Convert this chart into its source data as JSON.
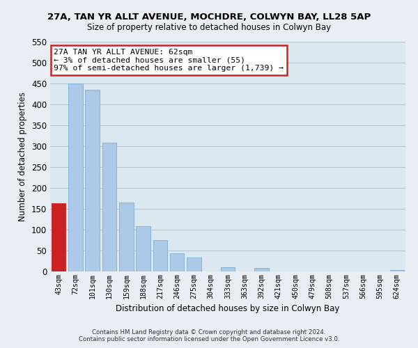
{
  "title1": "27A, TAN YR ALLT AVENUE, MOCHDRE, COLWYN BAY, LL28 5AP",
  "title2": "Size of property relative to detached houses in Colwyn Bay",
  "xlabel": "Distribution of detached houses by size in Colwyn Bay",
  "ylabel": "Number of detached properties",
  "categories": [
    "43sqm",
    "72sqm",
    "101sqm",
    "130sqm",
    "159sqm",
    "188sqm",
    "217sqm",
    "246sqm",
    "275sqm",
    "304sqm",
    "333sqm",
    "363sqm",
    "392sqm",
    "421sqm",
    "450sqm",
    "479sqm",
    "508sqm",
    "537sqm",
    "566sqm",
    "595sqm",
    "624sqm"
  ],
  "values": [
    163,
    450,
    435,
    308,
    165,
    108,
    75,
    43,
    33,
    0,
    10,
    0,
    8,
    0,
    0,
    0,
    0,
    0,
    0,
    0,
    3
  ],
  "bar_color": "#adc9e8",
  "bar_edge_color": "#7aafd4",
  "highlight_bar_index": 0,
  "highlight_bar_color": "#cc2222",
  "ylim": [
    0,
    550
  ],
  "yticks": [
    0,
    50,
    100,
    150,
    200,
    250,
    300,
    350,
    400,
    450,
    500,
    550
  ],
  "annotation_title": "27A TAN YR ALLT AVENUE: 62sqm",
  "annotation_line1": "← 3% of detached houses are smaller (55)",
  "annotation_line2": "97% of semi-detached houses are larger (1,739) →",
  "footer1": "Contains HM Land Registry data © Crown copyright and database right 2024.",
  "footer2": "Contains public sector information licensed under the Open Government Licence v3.0.",
  "bg_color": "#e8eef4",
  "plot_bg_color": "#dce8f0"
}
